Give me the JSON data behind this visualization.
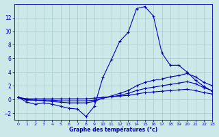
{
  "xlabel": "Graphe des températures (°c)",
  "background_color": "#cce8e8",
  "grid_color": "#aacccc",
  "line_color": "#0000bb",
  "hours": [
    0,
    1,
    2,
    3,
    4,
    5,
    6,
    7,
    8,
    9,
    10,
    11,
    12,
    13,
    14,
    15,
    16,
    17,
    18,
    19,
    20,
    21,
    22,
    23
  ],
  "temp_main": [
    0.3,
    -0.4,
    -0.7,
    -0.5,
    -0.7,
    -1.0,
    -1.3,
    -1.4,
    -2.5,
    -1.0,
    3.2,
    5.8,
    8.5,
    9.8,
    13.3,
    13.6,
    12.2,
    6.8,
    5.0,
    5.0,
    4.0,
    2.8,
    1.9,
    1.2
  ],
  "temp_line2": [
    0.3,
    -0.1,
    -0.1,
    -0.2,
    -0.3,
    -0.4,
    -0.5,
    -0.5,
    -0.5,
    -0.3,
    0.2,
    0.5,
    0.9,
    1.3,
    2.0,
    2.5,
    2.8,
    3.0,
    3.3,
    3.5,
    3.8,
    3.3,
    2.5,
    2.0
  ],
  "temp_line3": [
    0.3,
    0.0,
    -0.1,
    -0.1,
    -0.1,
    -0.2,
    -0.2,
    -0.2,
    -0.2,
    -0.1,
    0.2,
    0.4,
    0.6,
    0.9,
    1.3,
    1.6,
    1.8,
    2.0,
    2.2,
    2.4,
    2.6,
    2.3,
    1.7,
    1.3
  ],
  "temp_line4": [
    0.3,
    0.1,
    0.1,
    0.1,
    0.1,
    0.1,
    0.1,
    0.1,
    0.1,
    0.2,
    0.3,
    0.4,
    0.5,
    0.6,
    0.8,
    1.0,
    1.1,
    1.2,
    1.3,
    1.4,
    1.5,
    1.3,
    1.0,
    0.8
  ],
  "ylim": [
    -3,
    14
  ],
  "yticks": [
    -2,
    0,
    2,
    4,
    6,
    8,
    10,
    12
  ],
  "xlim": [
    -0.5,
    23
  ],
  "xticks": [
    0,
    1,
    2,
    3,
    4,
    5,
    6,
    7,
    8,
    9,
    10,
    11,
    12,
    13,
    14,
    15,
    16,
    17,
    18,
    19,
    20,
    21,
    22,
    23
  ]
}
